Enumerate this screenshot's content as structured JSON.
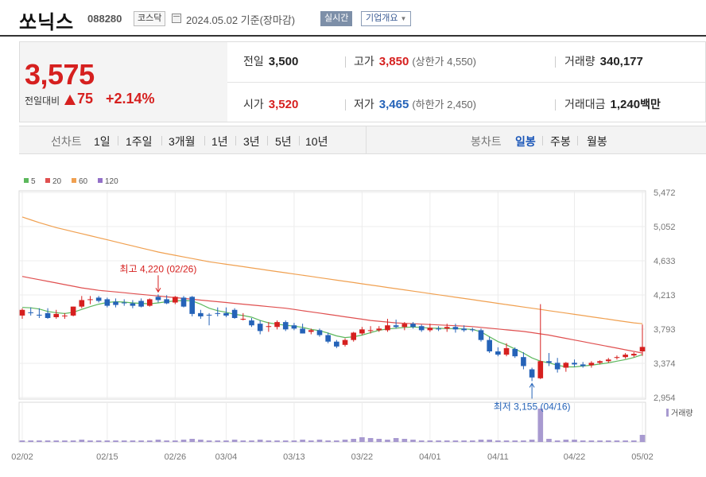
{
  "header": {
    "company": "쏘닉스",
    "code": "088280",
    "market": "코스닥",
    "basedate": "2024.05.02 기준(장마감)",
    "realtime": "실시간",
    "overview": "기업개요"
  },
  "summary": {
    "price": "3,575",
    "change_label": "전일대비",
    "change": "75",
    "change_pct": "+2.14%",
    "prev_label": "전일",
    "prev": "3,500",
    "open_label": "시가",
    "open": "3,520",
    "high_label": "고가",
    "high": "3,850",
    "upper_limit": "(상한가 4,550)",
    "low_label": "저가",
    "low": "3,465",
    "lower_limit": "(하한가 2,450)",
    "volume_label": "거래량",
    "volume": "340,177",
    "amount_label": "거래대금",
    "amount": "1,240",
    "amount_unit": "백만"
  },
  "periods": {
    "line_label": "선차트",
    "line_items": [
      "1일",
      "1주일",
      "3개월",
      "1년",
      "3년",
      "5년",
      "10년"
    ],
    "candle_label": "봉차트",
    "candle_items": [
      "일봉",
      "주봉",
      "월봉"
    ],
    "active_candle": "일봉"
  },
  "colors": {
    "up": "#d6201f",
    "down": "#2563b8",
    "ma5": "#5cb85c",
    "ma20": "#e05050",
    "ma60": "#f0a050",
    "ma120": "#9370c8",
    "volume": "#a89ad0"
  },
  "chart_data": {
    "type": "candlestick",
    "y_ticks": [
      "5,472",
      "5,052",
      "4,633",
      "4,213",
      "3,793",
      "3,374",
      "2,954"
    ],
    "ylim": [
      2954,
      5472
    ],
    "x_ticks": [
      "02/02",
      "02/15",
      "02/26",
      "03/04",
      "03/13",
      "03/22",
      "04/01",
      "04/11",
      "04/22",
      "05/02"
    ],
    "legend": [
      "5",
      "20",
      "60",
      "120"
    ],
    "volume_label": "거래량",
    "annotations": {
      "high": {
        "text": "최고 4,220 (02/26)",
        "date": "02/26",
        "value": 4220
      },
      "low": {
        "text": "최저 3,155 (04/16)",
        "date": "04/16",
        "value": 3155
      }
    },
    "candles": [
      {
        "o": 3960,
        "h": 4050,
        "l": 3920,
        "c": 4030
      },
      {
        "o": 4000,
        "h": 4060,
        "l": 3960,
        "c": 3990
      },
      {
        "o": 3970,
        "h": 4050,
        "l": 3930,
        "c": 3960
      },
      {
        "o": 3990,
        "h": 4050,
        "l": 3920,
        "c": 3930
      },
      {
        "o": 3940,
        "h": 4030,
        "l": 3920,
        "c": 3980
      },
      {
        "o": 3960,
        "h": 3990,
        "l": 3920,
        "c": 3960
      },
      {
        "o": 3960,
        "h": 4070,
        "l": 3950,
        "c": 4070
      },
      {
        "o": 4070,
        "h": 4200,
        "l": 4050,
        "c": 4150
      },
      {
        "o": 4150,
        "h": 4200,
        "l": 4100,
        "c": 4160
      },
      {
        "o": 4180,
        "h": 4200,
        "l": 4120,
        "c": 4140
      },
      {
        "o": 4160,
        "h": 4180,
        "l": 4060,
        "c": 4080
      },
      {
        "o": 4130,
        "h": 4170,
        "l": 4060,
        "c": 4090
      },
      {
        "o": 4120,
        "h": 4160,
        "l": 4080,
        "c": 4110
      },
      {
        "o": 4110,
        "h": 4150,
        "l": 4050,
        "c": 4080
      },
      {
        "o": 4140,
        "h": 4170,
        "l": 4060,
        "c": 4070
      },
      {
        "o": 4080,
        "h": 4170,
        "l": 4070,
        "c": 4160
      },
      {
        "o": 4190,
        "h": 4220,
        "l": 4120,
        "c": 4150
      },
      {
        "o": 4160,
        "h": 4210,
        "l": 4100,
        "c": 4110
      },
      {
        "o": 4120,
        "h": 4200,
        "l": 4100,
        "c": 4190
      },
      {
        "o": 4180,
        "h": 4200,
        "l": 4060,
        "c": 4070
      },
      {
        "o": 4190,
        "h": 4200,
        "l": 3950,
        "c": 3980
      },
      {
        "o": 3990,
        "h": 4030,
        "l": 3920,
        "c": 3950
      },
      {
        "o": 3970,
        "h": 3990,
        "l": 3840,
        "c": 3960
      },
      {
        "o": 3990,
        "h": 4060,
        "l": 3950,
        "c": 3980
      },
      {
        "o": 3990,
        "h": 4060,
        "l": 3940,
        "c": 3960
      },
      {
        "o": 4030,
        "h": 4050,
        "l": 3920,
        "c": 3930
      },
      {
        "o": 3920,
        "h": 3990,
        "l": 3900,
        "c": 3920
      },
      {
        "o": 3900,
        "h": 3930,
        "l": 3820,
        "c": 3840
      },
      {
        "o": 3860,
        "h": 3900,
        "l": 3730,
        "c": 3770
      },
      {
        "o": 3820,
        "h": 3880,
        "l": 3760,
        "c": 3830
      },
      {
        "o": 3820,
        "h": 3900,
        "l": 3790,
        "c": 3880
      },
      {
        "o": 3880,
        "h": 3900,
        "l": 3770,
        "c": 3790
      },
      {
        "o": 3840,
        "h": 3870,
        "l": 3780,
        "c": 3800
      },
      {
        "o": 3800,
        "h": 3860,
        "l": 3740,
        "c": 3740
      },
      {
        "o": 3760,
        "h": 3800,
        "l": 3730,
        "c": 3780
      },
      {
        "o": 3780,
        "h": 3800,
        "l": 3700,
        "c": 3720
      },
      {
        "o": 3720,
        "h": 3750,
        "l": 3620,
        "c": 3640
      },
      {
        "o": 3640,
        "h": 3660,
        "l": 3560,
        "c": 3580
      },
      {
        "o": 3600,
        "h": 3680,
        "l": 3580,
        "c": 3660
      },
      {
        "o": 3660,
        "h": 3760,
        "l": 3640,
        "c": 3750
      },
      {
        "o": 3740,
        "h": 3820,
        "l": 3720,
        "c": 3790
      },
      {
        "o": 3780,
        "h": 3830,
        "l": 3740,
        "c": 3780
      },
      {
        "o": 3780,
        "h": 3830,
        "l": 3760,
        "c": 3800
      },
      {
        "o": 3780,
        "h": 3920,
        "l": 3760,
        "c": 3840
      },
      {
        "o": 3840,
        "h": 3910,
        "l": 3800,
        "c": 3820
      },
      {
        "o": 3820,
        "h": 3880,
        "l": 3780,
        "c": 3860
      },
      {
        "o": 3860,
        "h": 3880,
        "l": 3800,
        "c": 3820
      },
      {
        "o": 3830,
        "h": 3850,
        "l": 3760,
        "c": 3780
      },
      {
        "o": 3780,
        "h": 3860,
        "l": 3760,
        "c": 3810
      },
      {
        "o": 3800,
        "h": 3830,
        "l": 3770,
        "c": 3790
      },
      {
        "o": 3800,
        "h": 3860,
        "l": 3760,
        "c": 3820
      },
      {
        "o": 3820,
        "h": 3860,
        "l": 3750,
        "c": 3790
      },
      {
        "o": 3800,
        "h": 3840,
        "l": 3760,
        "c": 3780
      },
      {
        "o": 3790,
        "h": 3810,
        "l": 3760,
        "c": 3780
      },
      {
        "o": 3780,
        "h": 3800,
        "l": 3640,
        "c": 3660
      },
      {
        "o": 3660,
        "h": 3700,
        "l": 3500,
        "c": 3520
      },
      {
        "o": 3520,
        "h": 3570,
        "l": 3460,
        "c": 3480
      },
      {
        "o": 3480,
        "h": 3620,
        "l": 3460,
        "c": 3560
      },
      {
        "o": 3550,
        "h": 3570,
        "l": 3440,
        "c": 3460
      },
      {
        "o": 3450,
        "h": 3510,
        "l": 3300,
        "c": 3340
      },
      {
        "o": 3300,
        "h": 3320,
        "l": 3155,
        "c": 3200
      },
      {
        "o": 3190,
        "h": 4100,
        "l": 3180,
        "c": 3400
      },
      {
        "o": 3400,
        "h": 3500,
        "l": 3340,
        "c": 3380
      },
      {
        "o": 3380,
        "h": 3440,
        "l": 3260,
        "c": 3300
      },
      {
        "o": 3320,
        "h": 3390,
        "l": 3270,
        "c": 3380
      },
      {
        "o": 3380,
        "h": 3420,
        "l": 3330,
        "c": 3360
      },
      {
        "o": 3360,
        "h": 3390,
        "l": 3320,
        "c": 3340
      },
      {
        "o": 3350,
        "h": 3400,
        "l": 3320,
        "c": 3380
      },
      {
        "o": 3380,
        "h": 3410,
        "l": 3360,
        "c": 3400
      },
      {
        "o": 3400,
        "h": 3440,
        "l": 3380,
        "c": 3420
      },
      {
        "o": 3440,
        "h": 3470,
        "l": 3420,
        "c": 3450
      },
      {
        "o": 3450,
        "h": 3500,
        "l": 3430,
        "c": 3480
      },
      {
        "o": 3470,
        "h": 3510,
        "l": 3450,
        "c": 3490
      },
      {
        "o": 3520,
        "h": 3850,
        "l": 3465,
        "c": 3575
      }
    ],
    "ma5": [
      4060,
      4055,
      4040,
      4010,
      3995,
      3985,
      4000,
      4035,
      4070,
      4100,
      4120,
      4130,
      4125,
      4115,
      4110,
      4105,
      4115,
      4130,
      4140,
      4145,
      4140,
      4100,
      4050,
      4020,
      4000,
      3975,
      3960,
      3940,
      3900,
      3870,
      3855,
      3840,
      3830,
      3815,
      3790,
      3775,
      3745,
      3710,
      3690,
      3700,
      3720,
      3750,
      3780,
      3795,
      3805,
      3815,
      3820,
      3815,
      3805,
      3805,
      3800,
      3800,
      3795,
      3790,
      3760,
      3700,
      3640,
      3600,
      3550,
      3500,
      3440,
      3400,
      3380,
      3350,
      3330,
      3330,
      3340,
      3350,
      3365,
      3380,
      3400,
      3420,
      3445,
      3480
    ],
    "ma20": [
      4440,
      4420,
      4400,
      4380,
      4360,
      4340,
      4320,
      4300,
      4285,
      4270,
      4260,
      4250,
      4240,
      4230,
      4220,
      4210,
      4200,
      4190,
      4180,
      4170,
      4160,
      4150,
      4140,
      4130,
      4120,
      4110,
      4100,
      4090,
      4080,
      4070,
      4060,
      4050,
      4035,
      4020,
      4005,
      3990,
      3975,
      3960,
      3945,
      3930,
      3915,
      3900,
      3890,
      3880,
      3870,
      3865,
      3860,
      3855,
      3850,
      3845,
      3840,
      3835,
      3830,
      3825,
      3815,
      3805,
      3795,
      3785,
      3775,
      3765,
      3750,
      3735,
      3720,
      3700,
      3680,
      3660,
      3640,
      3620,
      3600,
      3580,
      3560,
      3540,
      3520,
      3500
    ],
    "ma60": [
      5170,
      5135,
      5100,
      5070,
      5040,
      5015,
      4990,
      4965,
      4940,
      4915,
      4890,
      4865,
      4840,
      4815,
      4790,
      4765,
      4740,
      4720,
      4700,
      4680,
      4660,
      4640,
      4620,
      4605,
      4590,
      4575,
      4560,
      4545,
      4530,
      4515,
      4500,
      4485,
      4470,
      4455,
      4440,
      4425,
      4410,
      4395,
      4380,
      4365,
      4350,
      4335,
      4320,
      4305,
      4290,
      4275,
      4260,
      4245,
      4230,
      4215,
      4200,
      4185,
      4170,
      4155,
      4140,
      4125,
      4110,
      4095,
      4080,
      4065,
      4050,
      4035,
      4020,
      4005,
      3990,
      3975,
      3960,
      3945,
      3930,
      3915,
      3900,
      3885,
      3870,
      3860
    ],
    "volumes": [
      2,
      2,
      2,
      2,
      2,
      2,
      2,
      3,
      2,
      2,
      2,
      2,
      2,
      2,
      2,
      2,
      3,
      2,
      2,
      3,
      4,
      3,
      2,
      2,
      2,
      3,
      2,
      2,
      3,
      2,
      2,
      2,
      2,
      3,
      2,
      3,
      2,
      2,
      3,
      4,
      6,
      5,
      4,
      3,
      5,
      4,
      3,
      2,
      2,
      2,
      2,
      2,
      2,
      2,
      3,
      3,
      2,
      2,
      2,
      2,
      3,
      42,
      4,
      2,
      3,
      3,
      2,
      2,
      2,
      2,
      2,
      2,
      2,
      9
    ]
  }
}
